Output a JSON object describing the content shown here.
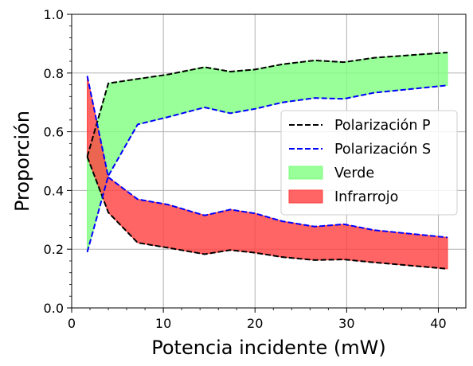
{
  "chart_data": {
    "type": "area",
    "title": "",
    "xlabel": "Potencia incidente (mW)",
    "ylabel": "Proporción",
    "xlim": [
      0,
      43
    ],
    "ylim": [
      0,
      1.0
    ],
    "grid": true,
    "legend_position": "center-right",
    "x_ticks": [
      0,
      10,
      20,
      30,
      40
    ],
    "x_tick_labels": [
      "0",
      "10",
      "20",
      "30",
      "40"
    ],
    "y_ticks": [
      0.0,
      0.2,
      0.4,
      0.6,
      0.8,
      1.0
    ],
    "y_tick_labels": [
      "0.0",
      "0.2",
      "0.4",
      "0.6",
      "0.8",
      "1.0"
    ],
    "x": [
      1.7,
      4.0,
      7.2,
      10.5,
      14.5,
      17.3,
      20.0,
      23.0,
      26.5,
      29.7,
      33.0,
      41.0
    ],
    "lines": [
      {
        "name": "Polarización P",
        "color": "#000000",
        "values": [
          0.515,
          0.765,
          0.78,
          0.795,
          0.82,
          0.805,
          0.812,
          0.83,
          0.843,
          0.837,
          0.852,
          0.87
        ]
      },
      {
        "name": "Polarización S",
        "color": "#0000ff",
        "values": [
          0.79,
          0.445,
          0.37,
          0.352,
          0.315,
          0.335,
          0.322,
          0.295,
          0.277,
          0.285,
          0.265,
          0.24
        ]
      }
    ],
    "lines_lower": [
      {
        "color": "#000000",
        "values": [
          0.515,
          0.325,
          0.222,
          0.205,
          0.183,
          0.197,
          0.188,
          0.173,
          0.163,
          0.165,
          0.155,
          0.133
        ]
      },
      {
        "color": "#0000ff",
        "values": [
          0.19,
          0.45,
          0.625,
          0.65,
          0.683,
          0.663,
          0.678,
          0.7,
          0.715,
          0.712,
          0.733,
          0.758
        ]
      }
    ],
    "bands": [
      {
        "name": "Verde",
        "color": "#7fff7f",
        "upper": [
          0.515,
          0.765,
          0.78,
          0.795,
          0.82,
          0.805,
          0.812,
          0.83,
          0.843,
          0.837,
          0.852,
          0.87
        ],
        "lower": [
          0.19,
          0.45,
          0.625,
          0.65,
          0.683,
          0.663,
          0.678,
          0.7,
          0.715,
          0.712,
          0.733,
          0.758
        ]
      },
      {
        "name": "Infrarrojo",
        "color": "#ff3f3f",
        "upper": [
          0.79,
          0.445,
          0.37,
          0.352,
          0.315,
          0.335,
          0.322,
          0.295,
          0.277,
          0.285,
          0.265,
          0.24
        ],
        "lower": [
          0.515,
          0.325,
          0.222,
          0.205,
          0.183,
          0.197,
          0.188,
          0.173,
          0.163,
          0.165,
          0.155,
          0.133
        ]
      }
    ],
    "legend": [
      {
        "label": "Polarización P",
        "kind": "line",
        "color": "#000000"
      },
      {
        "label": "Polarización S",
        "kind": "line",
        "color": "#0000ff"
      },
      {
        "label": "Verde",
        "kind": "patch",
        "color": "#7fff7f"
      },
      {
        "label": "Infrarrojo",
        "kind": "patch",
        "color": "#ff3f3f"
      }
    ]
  }
}
